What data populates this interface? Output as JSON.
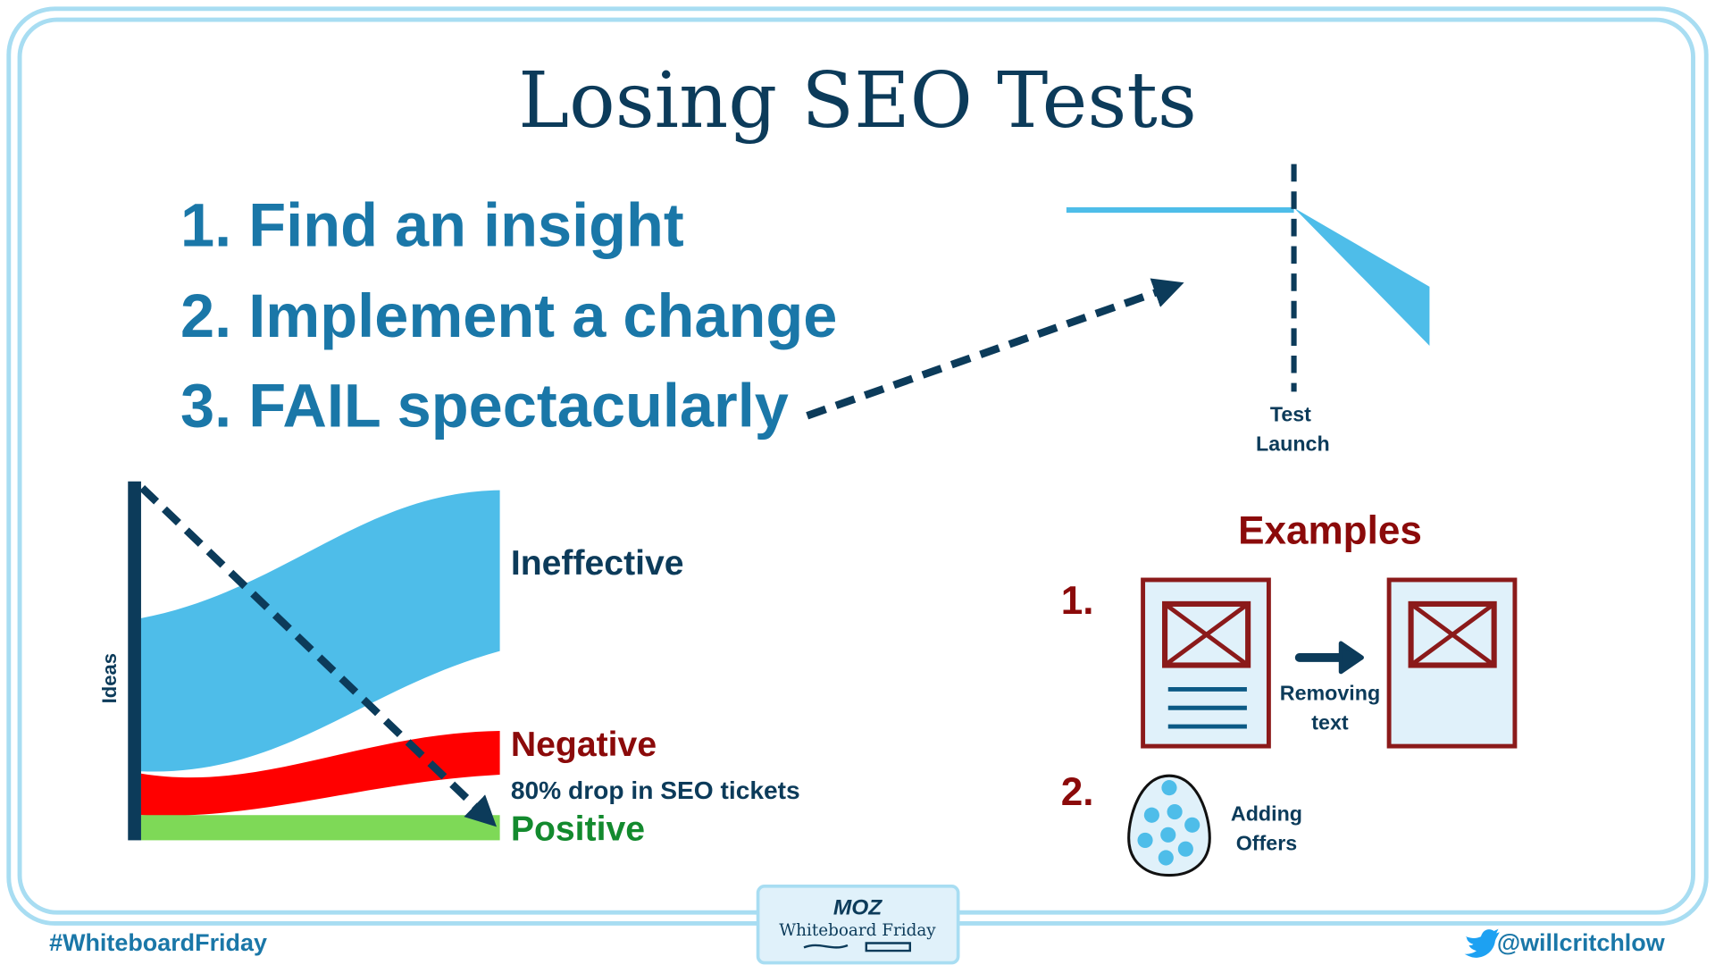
{
  "title": "Losing SEO Tests",
  "steps": [
    "1. Find an insight",
    "2. Implement a change",
    "3. FAIL spectacularly"
  ],
  "test_chart": {
    "label_line1": "Test",
    "label_line2": "Launch"
  },
  "flow_chart": {
    "axis_label": "Ideas",
    "ineffective": "Ineffective",
    "negative": "Negative",
    "annotation": "80% drop in SEO tickets",
    "positive": "Positive"
  },
  "examples": {
    "heading": "Examples",
    "items": [
      {
        "number": "1.",
        "caption_line1": "Removing",
        "caption_line2": "text"
      },
      {
        "number": "2.",
        "caption_line1": "Adding",
        "caption_line2": "Offers"
      }
    ]
  },
  "badge": {
    "logo": "MOZ",
    "name": "Whiteboard Friday"
  },
  "footer": {
    "hashtag": "#WhiteboardFriday",
    "twitter_handle": "@willcritchlow",
    "twitter_icon": "twitter-bird-icon"
  },
  "colors": {
    "navy": "#0c3b5a",
    "blue": "#1a77a8",
    "light_blue": "#4ebde9",
    "red": "#ff0000",
    "dark_red": "#8b0a0a",
    "green": "#7ed957",
    "border": "#a8ddf2"
  }
}
